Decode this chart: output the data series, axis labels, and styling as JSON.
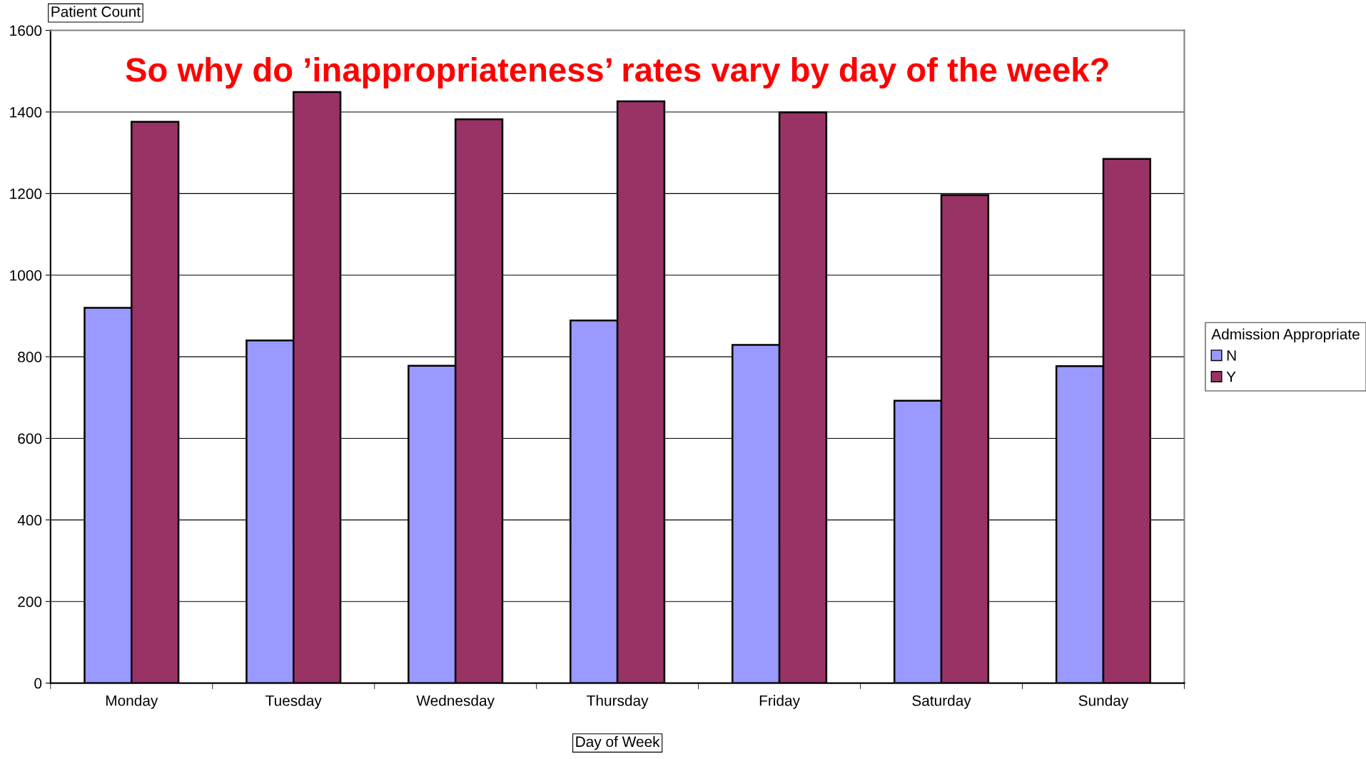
{
  "chart_data": {
    "type": "bar",
    "title": "So why do ’inappropriateness’ rates vary by day of the week?",
    "xlabel": "Day of Week",
    "ylabel": "Patient Count",
    "legend_title": "Admission Appropriate",
    "categories": [
      "Monday",
      "Tuesday",
      "Wednesday",
      "Thursday",
      "Friday",
      "Saturday",
      "Sunday"
    ],
    "series": [
      {
        "name": "N",
        "color": "#9999ff",
        "values": [
          920,
          840,
          778,
          889,
          829,
          692,
          777
        ]
      },
      {
        "name": "Y",
        "color": "#993366",
        "values": [
          1376,
          1449,
          1382,
          1426,
          1399,
          1196,
          1285
        ]
      }
    ],
    "ylim": [
      0,
      1600
    ],
    "yticks": [
      0,
      200,
      400,
      600,
      800,
      1000,
      1200,
      1400,
      1600
    ],
    "grid": "y",
    "legend": "right"
  }
}
